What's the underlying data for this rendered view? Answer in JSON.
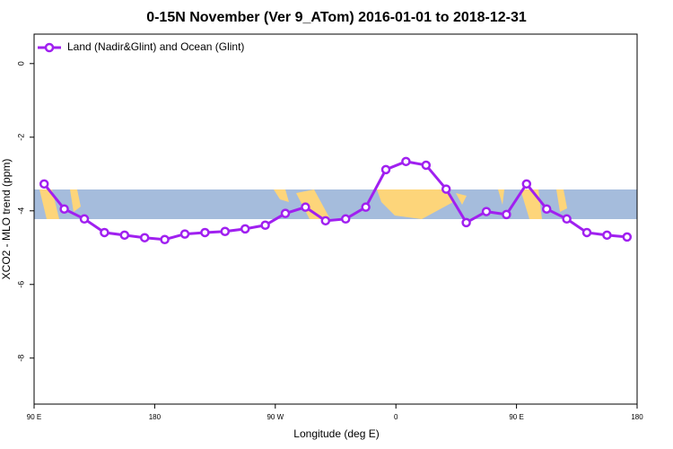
{
  "chart_data": {
    "type": "line",
    "title": "0-15N November (Ver 9_ATom)   2016-01-01 to 2018-12-31",
    "x_label": "Longitude (deg E)",
    "y_label": "XCO2 - MLO trend (ppm)",
    "x": [
      97.5,
      112.5,
      127.5,
      142.5,
      157.5,
      172.5,
      187.5,
      202.5,
      217.5,
      232.5,
      247.5,
      262.5,
      277.5,
      292.5,
      307.5,
      322.5,
      337.5,
      352.5,
      367.5,
      382.5,
      397.5,
      412.5,
      427.5,
      442.5,
      457.5,
      472.5,
      487.5,
      502.5,
      517.5,
      532.5
    ],
    "series": [
      {
        "name": "Land (Nadir&Glint) and Ocean (Glint)",
        "color": "#a020f0",
        "values": [
          -3.27,
          -3.95,
          -4.22,
          -4.59,
          -4.66,
          -4.73,
          -4.78,
          -4.63,
          -4.59,
          -4.56,
          -4.49,
          -4.39,
          -4.07,
          -3.9,
          -4.27,
          -4.22,
          -3.9,
          -2.88,
          -2.66,
          -2.76,
          -3.41,
          -4.32,
          -4.02,
          -4.1,
          -3.27,
          -3.95,
          -4.22,
          -4.59,
          -4.66,
          -4.71
        ]
      }
    ],
    "xlim": [
      90,
      540
    ],
    "xticks": [
      {
        "value": 90,
        "label": "90 E"
      },
      180,
      {
        "value": 270,
        "label": "90 W"
      },
      {
        "value": 360,
        "label": "0"
      },
      {
        "value": 450,
        "label": "90 E"
      },
      {
        "value": 540,
        "label": "180"
      }
    ],
    "ylim": [
      -9.25,
      0.8
    ],
    "yticks": [
      0,
      -2,
      -4,
      -6,
      -8
    ],
    "legend": "top-left"
  }
}
